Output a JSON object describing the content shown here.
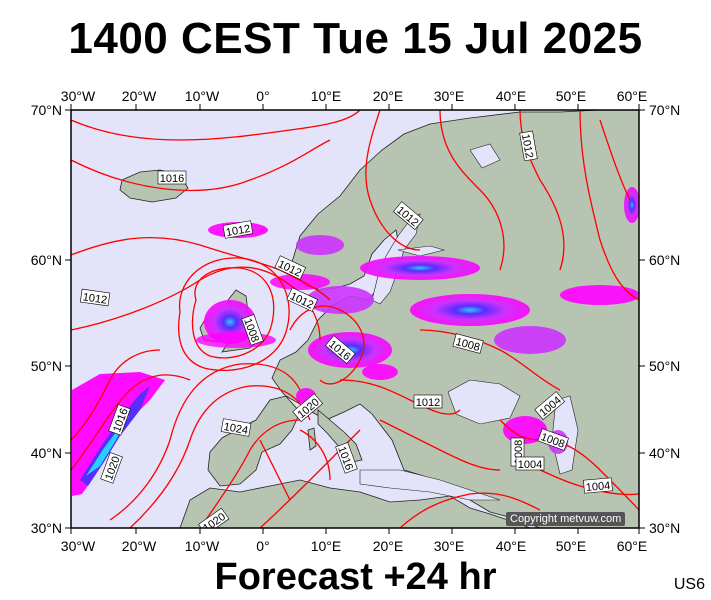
{
  "title": "1400 CEST Tue 15 Jul 2025",
  "forecast_label": "Forecast +24 hr",
  "region_code": "US6",
  "copyright": "Copyright metvuw.com",
  "map": {
    "lon_labels": [
      "30°W",
      "20°W",
      "10°W",
      "0°",
      "10°E",
      "20°E",
      "30°E",
      "40°E",
      "50°E",
      "60°E"
    ],
    "lat_labels": [
      "70°N",
      "60°N",
      "50°N",
      "40°N",
      "30°N"
    ],
    "isobar_labels": [
      "1016",
      "1012",
      "1012",
      "1012",
      "1012",
      "1012",
      "1008",
      "1008",
      "1016",
      "1016",
      "1020",
      "1012",
      "1004",
      "1008",
      "1008",
      "1004",
      "1004",
      "1024",
      "1016",
      "1020",
      "1020",
      "1012"
    ],
    "colors": {
      "sea": "#e3e3f9",
      "land": "#b7c4b2",
      "isobar": "#ff0000",
      "precip_light": "#ff00ff",
      "precip_heavy": "#5a2cff",
      "precip_max": "#26d0ff"
    }
  }
}
